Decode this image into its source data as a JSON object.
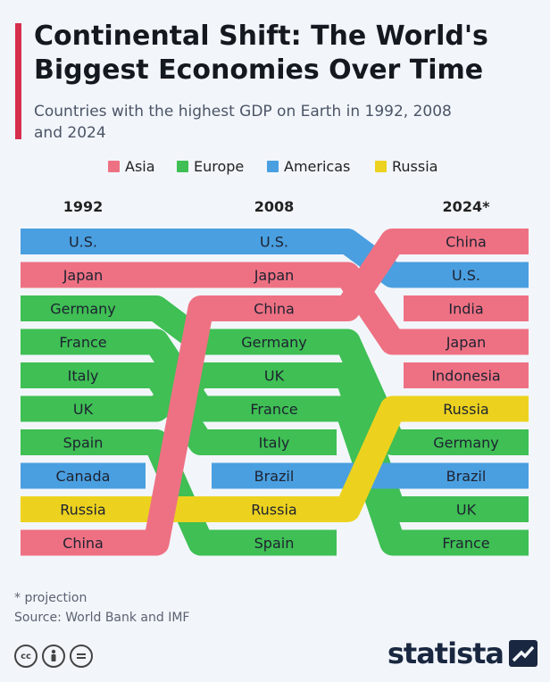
{
  "title": "Continental Shift: The World's Biggest Economies Over Time",
  "subtitle": "Countries with the highest GDP on Earth in 1992, 2008 and 2024",
  "legend": [
    {
      "label": "Asia",
      "region": "asia"
    },
    {
      "label": "Europe",
      "region": "europe"
    },
    {
      "label": "Americas",
      "region": "americas"
    },
    {
      "label": "Russia",
      "region": "russia"
    }
  ],
  "colors": {
    "asia": "#ee7183",
    "europe": "#3fbf54",
    "americas": "#4a9fe0",
    "russia": "#ecd21f"
  },
  "years": [
    "1992",
    "2008",
    "2024*"
  ],
  "rankings": {
    "1992": [
      "U.S.",
      "Japan",
      "Germany",
      "France",
      "Italy",
      "UK",
      "Spain",
      "Canada",
      "Russia",
      "China"
    ],
    "2008": [
      "U.S.",
      "Japan",
      "China",
      "Germany",
      "UK",
      "France",
      "Italy",
      "Brazil",
      "Russia",
      "Spain"
    ],
    "2024": [
      "China",
      "U.S.",
      "India",
      "Japan",
      "Indonesia",
      "Russia",
      "Germany",
      "Brazil",
      "UK",
      "France"
    ]
  },
  "country_region": {
    "U.S.": "americas",
    "Japan": "asia",
    "Germany": "europe",
    "France": "europe",
    "Italy": "europe",
    "UK": "europe",
    "Spain": "europe",
    "Canada": "americas",
    "Russia": "russia",
    "China": "asia",
    "Brazil": "americas",
    "India": "asia",
    "Indonesia": "asia"
  },
  "footnote": "* projection",
  "source": "Source: World Bank and IMF",
  "cc_icons": [
    "cc-icon",
    "by-icon",
    "nd-icon"
  ],
  "logo": "statista"
}
